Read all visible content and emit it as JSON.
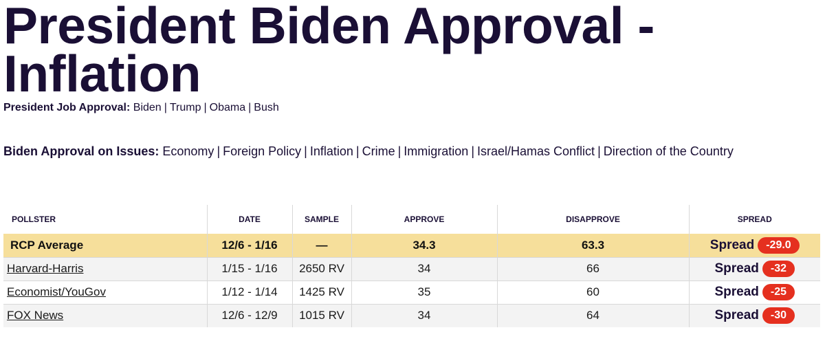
{
  "page": {
    "title": "President Biden Approval - Inflation"
  },
  "job_approval": {
    "label": "President Job Approval:",
    "links": [
      "Biden",
      "Trump",
      "Obama",
      "Bush"
    ]
  },
  "issues": {
    "label": "Biden Approval on Issues:",
    "links": [
      "Economy",
      "Foreign Policy",
      "Inflation",
      "Crime",
      "Immigration",
      "Israel/Hamas Conflict",
      "Direction of the Country"
    ]
  },
  "table": {
    "headers": {
      "pollster": "POLLSTER",
      "date": "DATE",
      "sample": "SAMPLE",
      "approve": "APPROVE",
      "disapprove": "DISAPPROVE",
      "spread": "SPREAD"
    },
    "average": {
      "pollster": "RCP Average",
      "date": "12/6 - 1/16",
      "sample": "—",
      "approve": "34.3",
      "disapprove": "63.3",
      "spread_label": "Spread",
      "spread": "-29.0"
    },
    "rows": [
      {
        "pollster": "Harvard-Harris",
        "date": "1/15 - 1/16",
        "sample": "2650 RV",
        "approve": "34",
        "disapprove": "66",
        "spread_label": "Spread",
        "spread": "-32"
      },
      {
        "pollster": "Economist/YouGov",
        "date": "1/12 - 1/14",
        "sample": "1425 RV",
        "approve": "35",
        "disapprove": "60",
        "spread_label": "Spread",
        "spread": "-25"
      },
      {
        "pollster": "FOX News",
        "date": "12/6 - 12/9",
        "sample": "1015 RV",
        "approve": "34",
        "disapprove": "64",
        "spread_label": "Spread",
        "spread": "-30"
      }
    ]
  },
  "colors": {
    "title": "#1a0f35",
    "average_row_bg": "#f6df9b",
    "spread_badge_bg": "#e5301f"
  }
}
